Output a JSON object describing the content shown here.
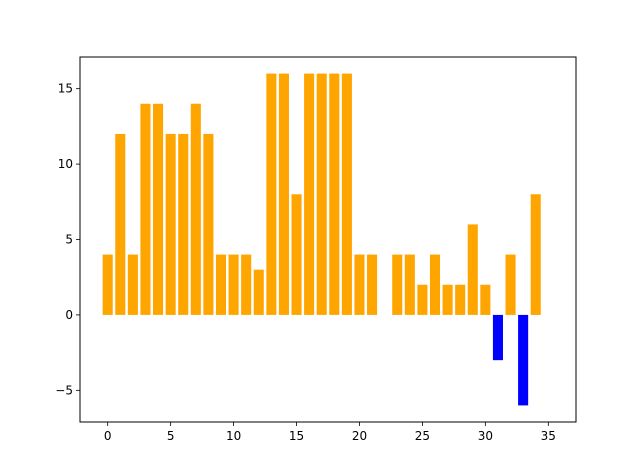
{
  "chart_data": {
    "type": "bar",
    "title": "",
    "xlabel": "",
    "ylabel": "",
    "xlim": [
      -2.2,
      37.2
    ],
    "ylim": [
      -7.1,
      17.1
    ],
    "grid": false,
    "colors": {
      "positive": "#ffa500",
      "negative": "#0000ff"
    },
    "x": [
      0,
      1,
      2,
      3,
      4,
      5,
      6,
      7,
      8,
      9,
      10,
      11,
      12,
      13,
      14,
      15,
      16,
      17,
      18,
      19,
      20,
      21,
      22,
      23,
      24,
      25,
      26,
      27,
      28,
      29,
      30,
      31,
      32,
      33,
      34
    ],
    "values": [
      4,
      12,
      4,
      14,
      14,
      12,
      12,
      14,
      12,
      4,
      4,
      4,
      3,
      16,
      16,
      8,
      16,
      16,
      16,
      16,
      4,
      4,
      0,
      4,
      4,
      2,
      4,
      2,
      2,
      6,
      2,
      -3,
      4,
      -6,
      8
    ],
    "xticks": [
      0,
      5,
      10,
      15,
      20,
      25,
      30,
      35
    ],
    "xtick_labels": [
      "0",
      "5",
      "10",
      "15",
      "20",
      "25",
      "30",
      "35"
    ],
    "yticks": [
      -5,
      0,
      5,
      10,
      15
    ],
    "ytick_labels": [
      "−5",
      "0",
      "5",
      "10",
      "15"
    ]
  }
}
